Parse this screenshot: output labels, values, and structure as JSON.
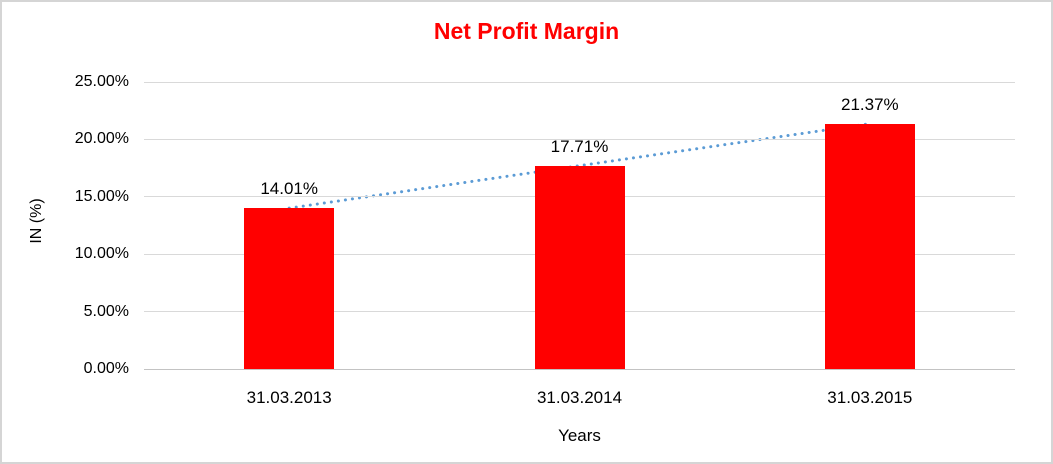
{
  "chart_data": {
    "type": "bar",
    "title": "Net Profit Margin",
    "categories": [
      "31.03.2013",
      "31.03.2014",
      "31.03.2015"
    ],
    "values": [
      14.01,
      17.71,
      21.37
    ],
    "data_labels": [
      "14.01%",
      "17.71%",
      "21.37%"
    ],
    "xlabel": "Years",
    "ylabel": "IN (%)",
    "ylim": [
      0,
      25
    ],
    "ytick_values": [
      25,
      20,
      15,
      10,
      5,
      0
    ],
    "ytick_labels": [
      "25.00%",
      "20.00%",
      "15.00%",
      "10.00%",
      "5.00%",
      "0.00%"
    ],
    "grid": true,
    "legend_position": "none",
    "trendline": true,
    "colors": {
      "bar": "#ff0000",
      "title": "#ff0000",
      "trendline": "#5b9bd5",
      "gridline": "#d9d9d9",
      "axis_line": "#c3c3c3",
      "text": "#000000"
    }
  }
}
